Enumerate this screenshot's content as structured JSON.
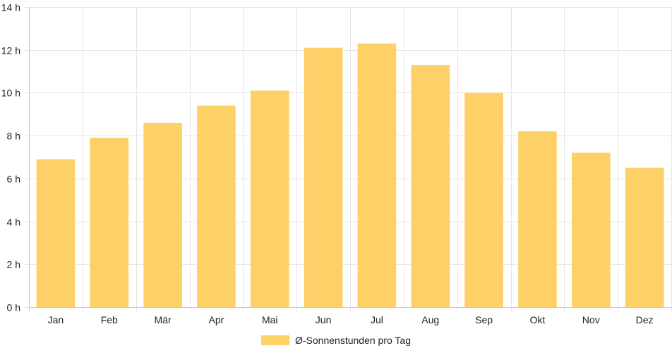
{
  "chart_data": {
    "type": "bar",
    "categories": [
      "Jan",
      "Feb",
      "Mär",
      "Apr",
      "Mai",
      "Jun",
      "Jul",
      "Aug",
      "Sep",
      "Okt",
      "Nov",
      "Dez"
    ],
    "series": [
      {
        "name": "Ø-Sonnenstunden pro Tag",
        "values": [
          6.9,
          7.9,
          8.6,
          9.4,
          10.1,
          12.1,
          12.3,
          11.3,
          10.0,
          8.2,
          7.2,
          6.5
        ]
      }
    ],
    "ylim": [
      0,
      14
    ],
    "yticks": [
      0,
      2,
      4,
      6,
      8,
      10,
      12,
      14
    ],
    "ytick_labels": [
      "0 h",
      "2 h",
      "4 h",
      "6 h",
      "8 h",
      "10 h",
      "12 h",
      "14 h"
    ],
    "grid": true,
    "legend_position": "bottom",
    "colors": {
      "bar": "#fdd068",
      "grid": "#e6e6e6",
      "axis": "#c8c8c8"
    }
  }
}
